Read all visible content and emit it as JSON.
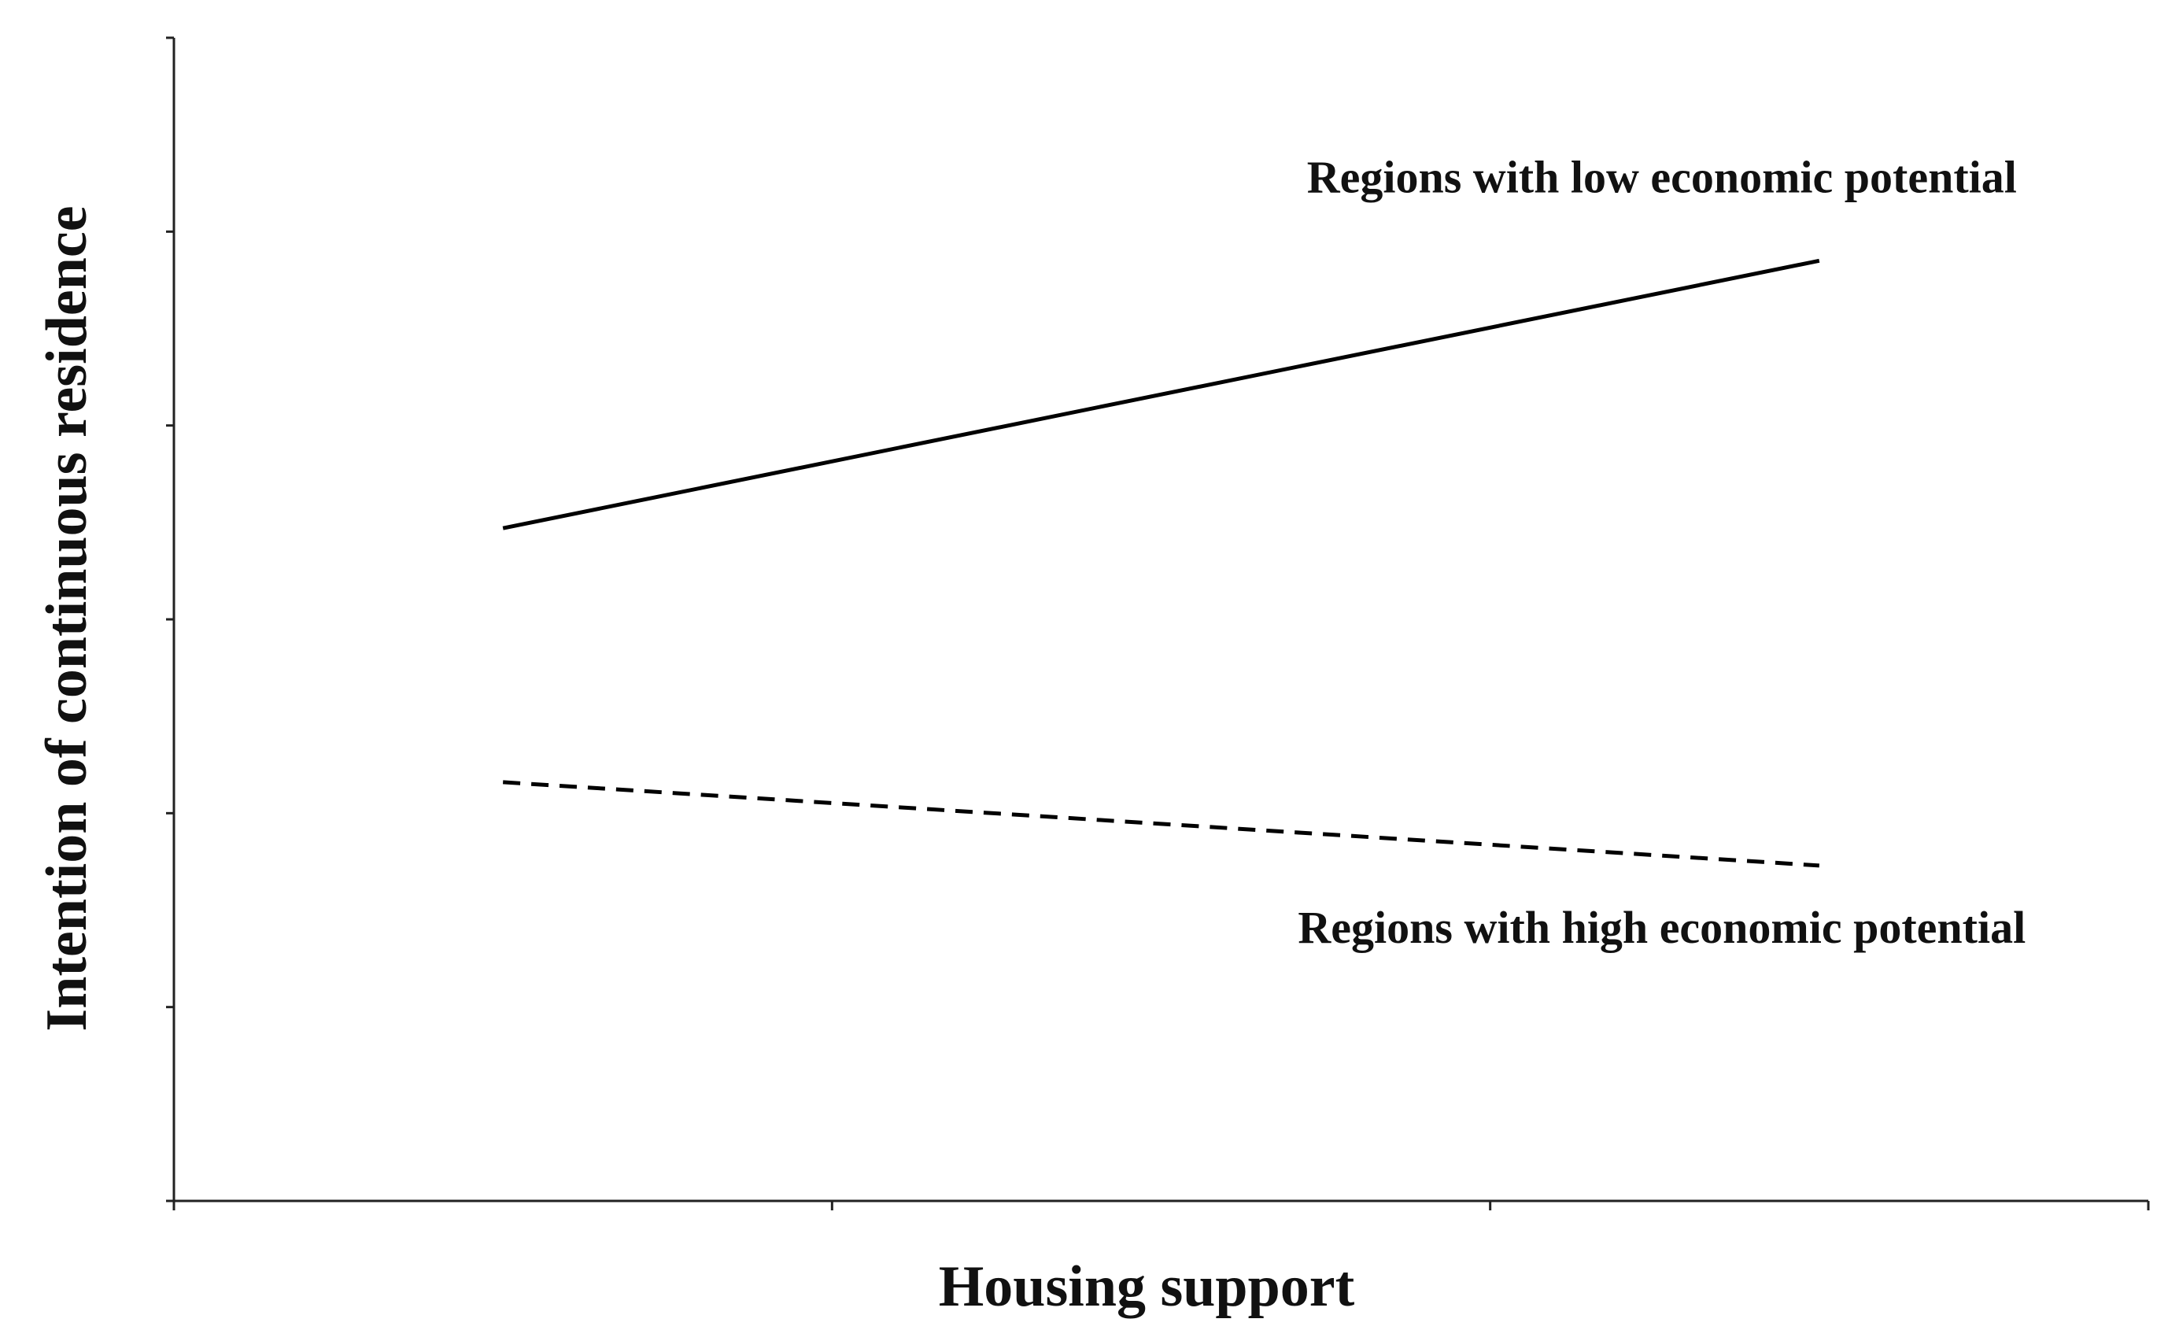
{
  "chart_data": {
    "type": "line",
    "x_label": "Housing support",
    "y_label": "Intention of continuous residence",
    "x": [
      0.5,
      2.5
    ],
    "series": [
      {
        "name": "Regions with low economic potential",
        "color": "#000000",
        "linestyle": "solid",
        "values": [
          3.47,
          4.85
        ]
      },
      {
        "name": "Regions with high economic potential",
        "color": "#000000",
        "linestyle": "dashed",
        "values": [
          2.16,
          1.73
        ]
      }
    ],
    "xlim": [
      0,
      3
    ],
    "xticks": [
      0,
      1,
      2,
      3
    ],
    "ylim": [
      0,
      6
    ],
    "yticks": [
      0,
      1,
      2,
      3,
      4,
      5,
      6
    ],
    "grid": false
  }
}
